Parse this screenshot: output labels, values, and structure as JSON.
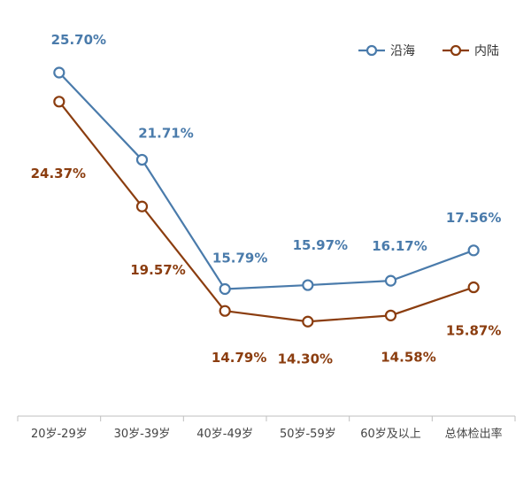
{
  "chart_data": {
    "type": "line",
    "title": "",
    "xlabel": "",
    "ylabel": "",
    "categories": [
      "20岁-29岁",
      "30岁-39岁",
      "40岁-49岁",
      "50岁-59岁",
      "60岁及以上",
      "总体检出率"
    ],
    "series": [
      {
        "name": "沿海",
        "color": "#4a7bab",
        "values": [
          25.7,
          21.71,
          15.79,
          15.97,
          16.17,
          17.56
        ],
        "labels": [
          "25.70%",
          "21.71%",
          "15.79%",
          "15.97%",
          "16.17%",
          "17.56%"
        ]
      },
      {
        "name": "内陆",
        "color": "#8b3d0f",
        "values": [
          24.37,
          19.57,
          14.79,
          14.3,
          14.58,
          15.87
        ],
        "labels": [
          "24.37%",
          "19.57%",
          "14.79%",
          "14.30%",
          "14.58%",
          "15.87%"
        ]
      }
    ],
    "ylim": [
      10,
      28
    ],
    "grid": false,
    "legend_position": "top-right"
  }
}
